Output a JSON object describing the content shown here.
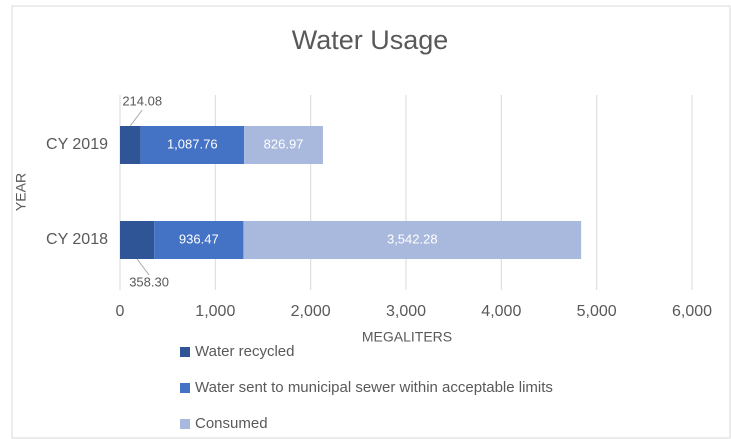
{
  "chart_data": {
    "type": "stacked_barh",
    "title": "Water Usage",
    "x_label": "MEGALITERS",
    "y_label": "YEAR",
    "categories": [
      "CY 2019",
      "CY 2018"
    ],
    "series": [
      {
        "name": "Water recycled",
        "color": "#2f5597",
        "values": [
          214.08,
          358.3
        ],
        "value_labels": [
          "214.08",
          "358.30"
        ]
      },
      {
        "name": "Water sent to municipal sewer within acceptable limits",
        "color": "#4472c4",
        "values": [
          1087.76,
          936.47
        ],
        "value_labels": [
          "1,087.76",
          "936.47"
        ]
      },
      {
        "name": "Consumed",
        "color": "#a9b9dd",
        "values": [
          826.97,
          3542.28
        ],
        "value_labels": [
          "826.97",
          "3,542.28"
        ]
      }
    ],
    "xlim": [
      0,
      6000
    ],
    "xticks": [
      0,
      {
        "value": 1000,
        "label": "1,000"
      },
      {
        "value": 2000,
        "label": "2,000"
      },
      {
        "value": 3000,
        "label": "3,000"
      },
      {
        "value": 4000,
        "label": "4,000"
      },
      {
        "value": 5000,
        "label": "5,000"
      },
      {
        "value": 6000,
        "label": "6,000"
      }
    ],
    "grid": true
  }
}
